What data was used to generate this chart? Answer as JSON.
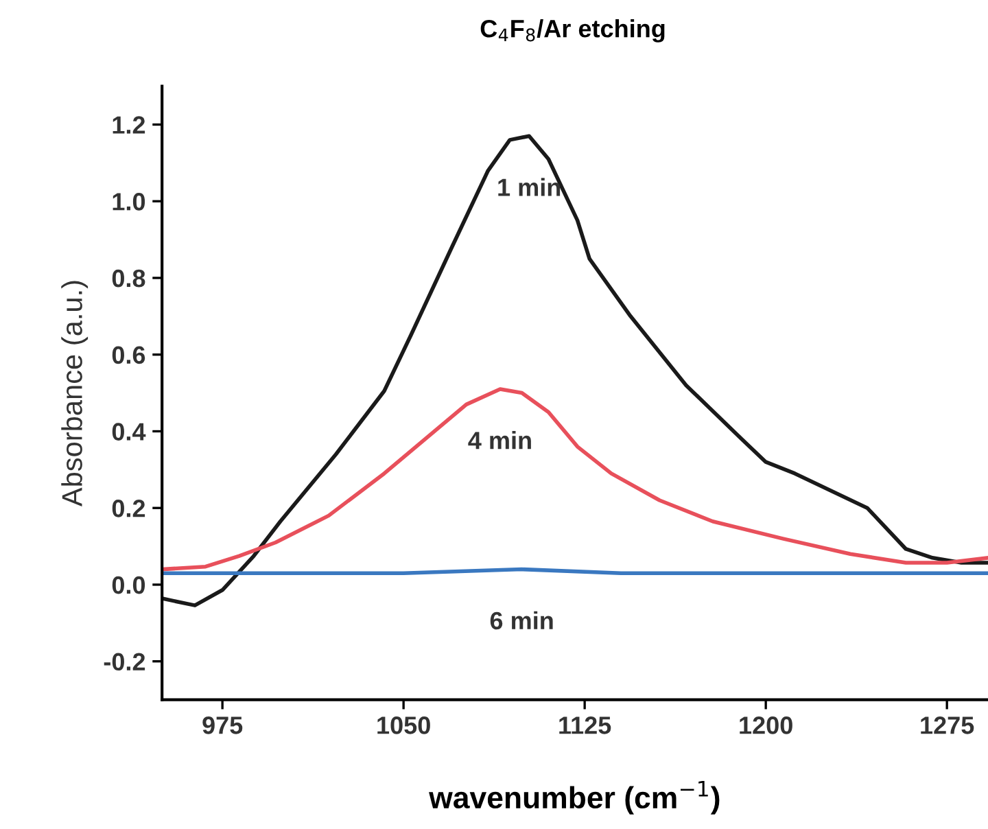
{
  "chart_data": {
    "type": "line",
    "title": "C$_{4}$F$_{8}$/Ar etching",
    "xlabel": "wavenumber (cm$^{−1}$)",
    "ylabel": "Absorbance (a.u.)",
    "xlim": [
      950,
      1292
    ],
    "xticks": [
      975,
      1050,
      1125,
      1200,
      1275
    ],
    "ylim": [
      -0.3,
      1.3
    ],
    "yticks": [
      -0.2,
      {
        "value": 0,
        "label": "0.0"
      },
      0.2,
      0.4,
      0.6,
      0.8,
      {
        "value": 1,
        "label": "1.0"
      },
      1.2
    ],
    "grid": false,
    "legend": false,
    "marker": "none",
    "line_style": "solid",
    "series": [
      {
        "name": "1 min",
        "color": "#1a1a1a",
        "x": [
          950,
          963.6,
          975,
          988,
          999,
          1022,
          1042,
          1053,
          1070,
          1085,
          1094,
          1102,
          1110,
          1122,
          1127,
          1144,
          1167,
          1190,
          1200,
          1212,
          1242,
          1258,
          1269,
          1281,
          1292
        ],
        "values": [
          -0.036,
          -0.054,
          -0.014,
          0.075,
          0.165,
          0.34,
          0.505,
          0.65,
          0.88,
          1.08,
          1.16,
          1.17,
          1.11,
          0.95,
          0.85,
          0.7,
          0.52,
          0.38,
          0.32,
          0.29,
          0.2,
          0.093,
          0.07,
          0.057,
          0.057
        ]
      },
      {
        "name": "4 min",
        "color": "#e8505b",
        "x": [
          950,
          968,
          982,
          997,
          1019,
          1042,
          1059,
          1076,
          1090,
          1099,
          1110,
          1122,
          1136,
          1156,
          1178,
          1207,
          1235,
          1258,
          1275,
          1292
        ],
        "values": [
          0.04,
          0.047,
          0.075,
          0.11,
          0.18,
          0.29,
          0.38,
          0.47,
          0.51,
          0.5,
          0.45,
          0.36,
          0.29,
          0.22,
          0.165,
          0.12,
          0.08,
          0.057,
          0.057,
          0.07
        ]
      },
      {
        "name": "6 min",
        "color": "#3a78c0",
        "x": [
          950,
          1050,
          1099,
          1140,
          1292
        ],
        "values": [
          0.03,
          0.03,
          0.04,
          0.03,
          0.03
        ]
      }
    ]
  }
}
